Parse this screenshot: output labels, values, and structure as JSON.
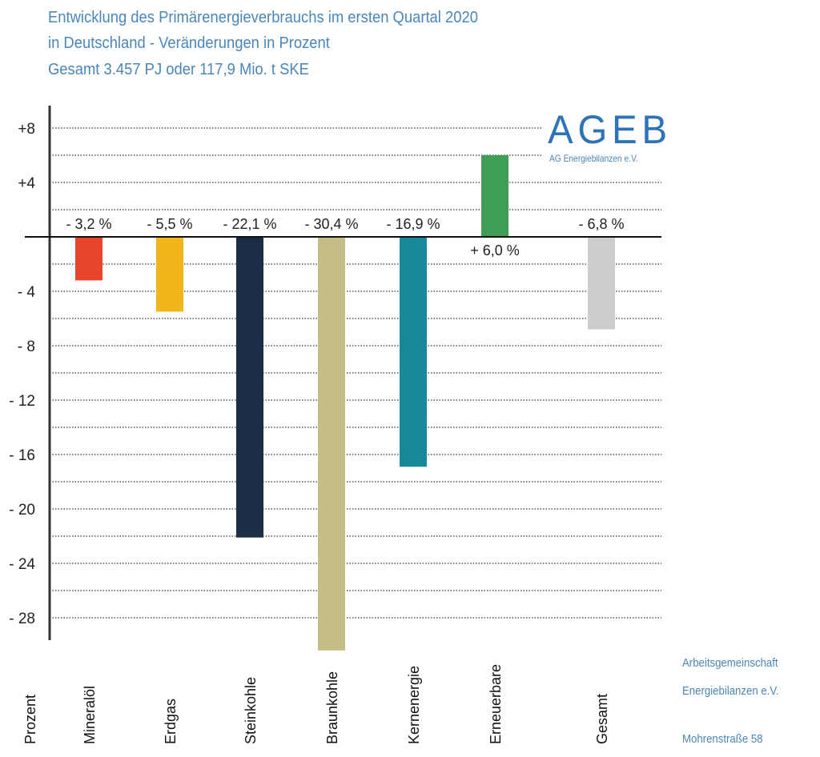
{
  "title_lines": [
    "Entwicklung des Primärenergieverbrauchs im ersten Quartal 2020",
    "in Deutschland - Veränderungen in Prozent",
    "Gesamt 3.457 PJ oder 117,9 Mio. t SKE"
  ],
  "logo": {
    "text": "AGEB",
    "subtitle": "AG Energiebilanzen e.V."
  },
  "footer": [
    "Arbeitsgemeinschaft",
    "Energiebilanzen e.V.",
    "Mohrenstraße 58"
  ],
  "chart_data": {
    "type": "bar",
    "title": "Entwicklung des Primärenergieverbrauchs im ersten Quartal 2020 in Deutschland - Veränderungen in Prozent",
    "subtitle": "Gesamt 3.457 PJ oder 117,9 Mio. t SKE",
    "xlabel": "",
    "ylabel": "Prozent",
    "ylim": [
      -30,
      9
    ],
    "yticks": [
      8,
      4,
      -4,
      -8,
      -12,
      -16,
      -20,
      -24,
      -28
    ],
    "ytick_labels": [
      "+8",
      "+4",
      "- 4",
      "- 8",
      "- 12",
      "- 16",
      "- 20",
      "- 24",
      "- 28"
    ],
    "grid": true,
    "grid_step": 2,
    "categories": [
      "Mineralöl",
      "Erdgas",
      "Steinkohle",
      "Braunkohle",
      "Kernenergie",
      "Erneuerbare",
      "Gesamt"
    ],
    "values": [
      -3.2,
      -5.5,
      -22.1,
      -30.4,
      -16.9,
      6.0,
      -6.8
    ],
    "data_labels": [
      "- 3,2 %",
      "- 5,5 %",
      "- 22,1 %",
      "- 30,4 %",
      "- 16,9 %",
      "+ 6,0 %",
      "- 6,8 %"
    ],
    "colors": [
      "#e8452c",
      "#f2b51c",
      "#1b2e46",
      "#c4bd86",
      "#16899a",
      "#3f9e55",
      "#cdcdcd"
    ]
  }
}
